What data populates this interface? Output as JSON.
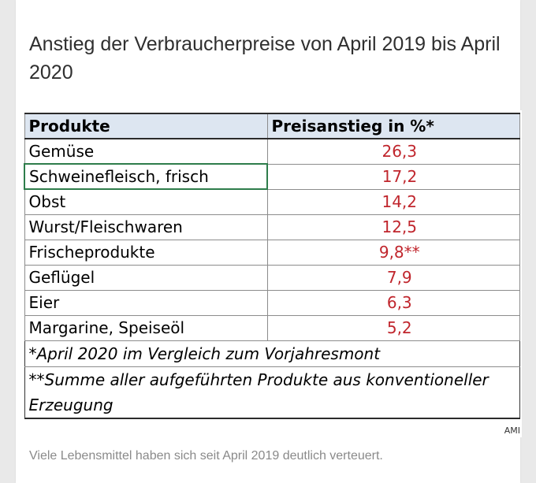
{
  "article": {
    "headline": "Anstieg der Verbraucherpreise von April 2019 bis April 2020",
    "caption": "Viele Lebensmittel haben sich seit April 2019 deutlich verteuert."
  },
  "table": {
    "headers": [
      "Produkte",
      "Preisanstieg in %*"
    ],
    "rows": [
      {
        "product": "Gemüse",
        "value": "26,3"
      },
      {
        "product": "Schweinefleisch, frisch",
        "value": "17,2"
      },
      {
        "product": "Obst",
        "value": "14,2"
      },
      {
        "product": "Wurst/Fleischwaren",
        "value": "12,5"
      },
      {
        "product": "Frischeprodukte",
        "value": "9,8**"
      },
      {
        "product": "Geflügel",
        "value": "7,9"
      },
      {
        "product": "Eier",
        "value": "6,3"
      },
      {
        "product": "Margarine, Speiseöl",
        "value": "5,2"
      }
    ],
    "footnotes": [
      "*April 2020 im Vergleich zum Vorjahresmont",
      "**Summe aller aufgeführten Produkte aus konventioneller Erzeugung"
    ],
    "source": "AMI"
  },
  "colors": {
    "value_red": "#c0262d",
    "header_fill": "#dde6f1",
    "selection_green": "#2e7d4b"
  }
}
